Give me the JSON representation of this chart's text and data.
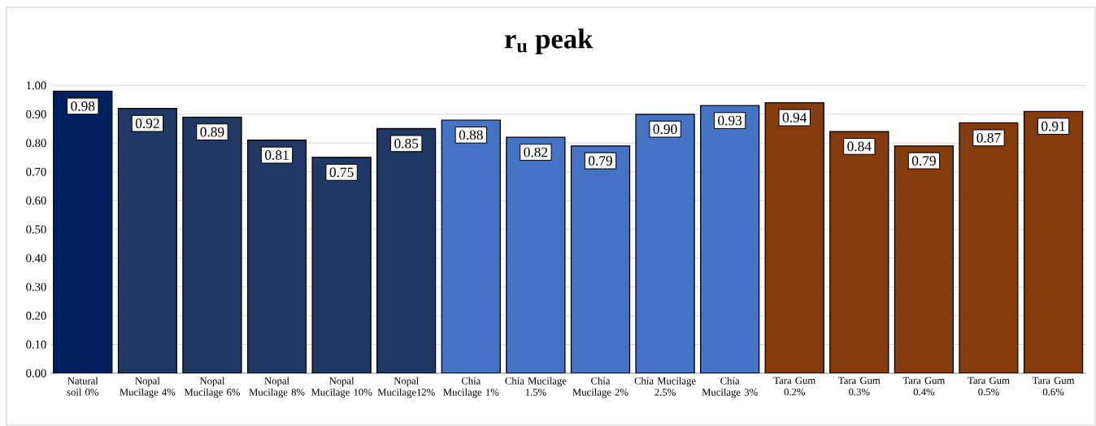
{
  "chart_data": {
    "type": "bar",
    "title": "r$_{u}$ peak",
    "categories": [
      "Natural soil 0%",
      "Nopal Mucilage 4%",
      "Nopal Mucilage 6%",
      "Nopal Mucilage 8%",
      "Nopal Mucilage 10%",
      "Nopal Mucilage12%",
      "Chía Mucilage 1%",
      "Chía Mucilage 1.5%",
      "Chía Mucilage 2%",
      "Chía Mucilage 2.5%",
      "Chía Mucilage 3%",
      "Tara Gum 0.2%",
      "Tara Gum 0.3%",
      "Tara Gum 0.4%",
      "Tara Gum 0.5%",
      "Tara Gum 0.6%"
    ],
    "values": [
      0.98,
      0.92,
      0.89,
      0.81,
      0.75,
      0.85,
      0.88,
      0.82,
      0.79,
      0.9,
      0.93,
      0.94,
      0.84,
      0.79,
      0.87,
      0.91
    ],
    "value_labels": [
      "0.98",
      "0.92",
      "0.89",
      "0.81",
      "0.75",
      "0.85",
      "0.88",
      "0.82",
      "0.79",
      "0.90",
      "0.93",
      "0.94",
      "0.84",
      "0.79",
      "0.87",
      "0.91"
    ],
    "colors": [
      "#002060",
      "#1f3864",
      "#1f3864",
      "#1f3864",
      "#1f3864",
      "#1f3864",
      "#4472c4",
      "#4472c4",
      "#4472c4",
      "#4472c4",
      "#4472c4",
      "#843c0c",
      "#843c0c",
      "#843c0c",
      "#843c0c",
      "#843c0c"
    ],
    "ylim": [
      0,
      1.0
    ],
    "yticks": [
      {
        "value": 0,
        "label": "0.00"
      },
      {
        "value": 0.1,
        "label": "0.10"
      },
      {
        "value": 0.2,
        "label": "0.20"
      },
      {
        "value": 0.3,
        "label": "0.30"
      },
      {
        "value": 0.4,
        "label": "0.40"
      },
      {
        "value": 0.5,
        "label": "0.50"
      },
      {
        "value": 0.6,
        "label": "0.60"
      },
      {
        "value": 0.7,
        "label": "0.70"
      },
      {
        "value": 0.8,
        "label": "0.80"
      },
      {
        "value": 0.9,
        "label": "0.90"
      },
      {
        "value": 1.0,
        "label": "1.00"
      }
    ],
    "grid": "y"
  }
}
